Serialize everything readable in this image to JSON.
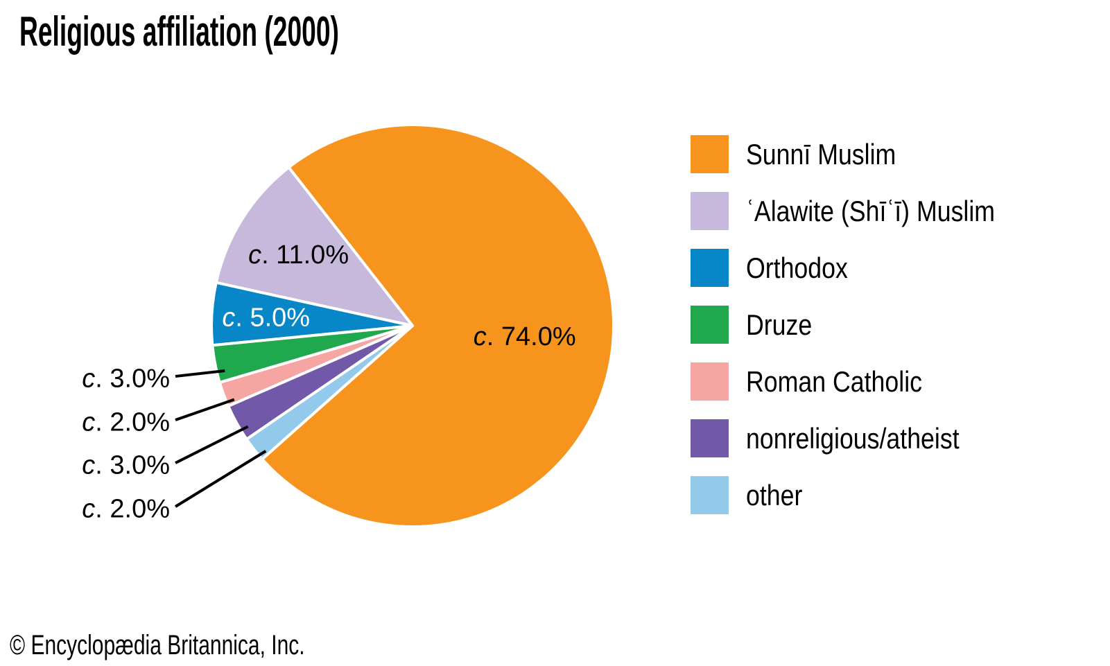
{
  "title": "Religious affiliation (2000)",
  "footer": "© Encyclopædia Britannica, Inc.",
  "chart_data": {
    "type": "pie",
    "title": "Religious affiliation (2000)",
    "legend_position": "right",
    "start_angle_deg": 221.6,
    "direction": "counterclockwise",
    "total": 100,
    "slices": [
      {
        "key": "sunni-muslim",
        "label": "Sunnī Muslim",
        "value": 74.0,
        "display_value": "c. 74.0%",
        "color": "#F7941E",
        "label_placement": "inside",
        "label_color": "#000000"
      },
      {
        "key": "alawite-shii-muslim",
        "label": "ʿAlawite (Shīʿī) Muslim",
        "value": 11.0,
        "display_value": "c. 11.0%",
        "color": "#C6B9DC",
        "label_placement": "inside",
        "label_color": "#000000"
      },
      {
        "key": "orthodox",
        "label": "Orthodox",
        "value": 5.0,
        "display_value": "c. 5.0%",
        "color": "#0787C8",
        "label_placement": "inside",
        "label_color": "#FFFFFF"
      },
      {
        "key": "druze",
        "label": "Druze",
        "value": 3.0,
        "display_value": "c. 3.0%",
        "color": "#20A84E",
        "label_placement": "callout",
        "label_color": "#000000"
      },
      {
        "key": "roman-catholic",
        "label": "Roman Catholic",
        "value": 2.0,
        "display_value": "c. 2.0%",
        "color": "#F5A6A3",
        "label_placement": "callout",
        "label_color": "#000000"
      },
      {
        "key": "nonreligious-atheist",
        "label": "nonreligious/atheist",
        "value": 3.0,
        "display_value": "c. 3.0%",
        "color": "#7258A8",
        "label_placement": "callout",
        "label_color": "#000000"
      },
      {
        "key": "other",
        "label": "other",
        "value": 2.0,
        "display_value": "c. 2.0%",
        "color": "#93CAEC",
        "label_placement": "callout",
        "label_color": "#000000"
      }
    ]
  }
}
